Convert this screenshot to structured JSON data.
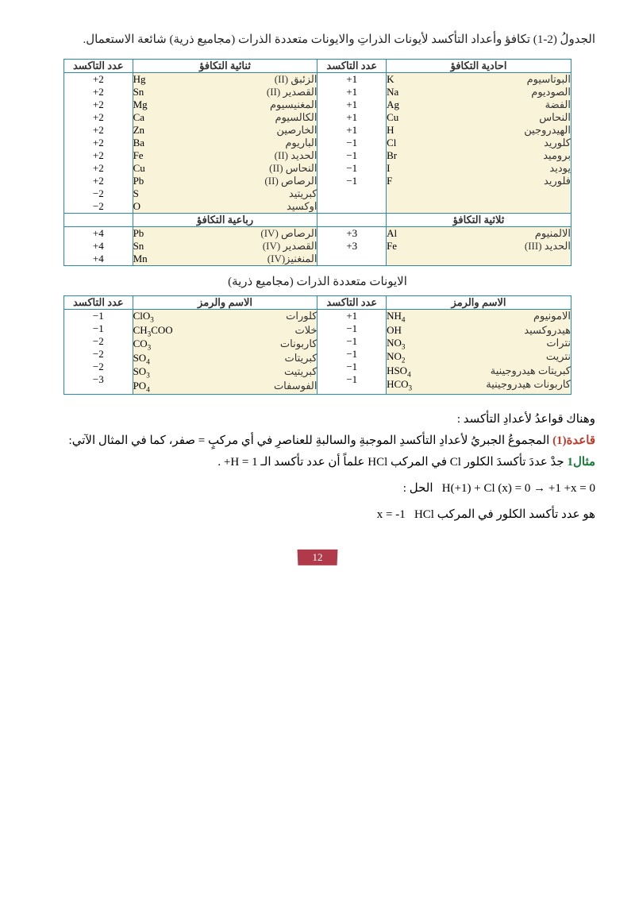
{
  "title": "الجدولُ (2-1) تكافؤ وأعداد التأكسد لأيونات الذراتِ والايونات متعددة الذرات (مجاميع ذرية) شائعة الاستعمال.",
  "table1": {
    "headers": {
      "monovalent": "احادية التكافؤ",
      "ox1": "عدد التاكسد",
      "divalent": "ثنائية التكافؤ",
      "ox2": "عدد التاكسد"
    },
    "left": [
      {
        "sym": "K",
        "ar": "البوتاسيوم",
        "ox": "+1"
      },
      {
        "sym": "Na",
        "ar": "الصوديوم",
        "ox": "+1"
      },
      {
        "sym": "Ag",
        "ar": "الفضة",
        "ox": "+1"
      },
      {
        "sym": "Cu",
        "ar": "النحاس",
        "ox": "+1"
      },
      {
        "sym": "H",
        "ar": "الهيدروجين",
        "ox": "+1"
      },
      {
        "sym": "Cl",
        "ar": "كلوريد",
        "ox": "−1"
      },
      {
        "sym": "Br",
        "ar": "بروميد",
        "ox": "−1"
      },
      {
        "sym": "I",
        "ar": "يوديد",
        "ox": "−1"
      },
      {
        "sym": "F",
        "ar": "فلوريد",
        "ox": "−1"
      }
    ],
    "right": [
      {
        "sym": "Hg",
        "ar": "الزئبق (II)",
        "ox": "+2"
      },
      {
        "sym": "Sn",
        "ar": "القصدير (II)",
        "ox": "+2"
      },
      {
        "sym": "Mg",
        "ar": "المغنيسيوم",
        "ox": "+2"
      },
      {
        "sym": "Ca",
        "ar": "الكالسيوم",
        "ox": "+2"
      },
      {
        "sym": "Zn",
        "ar": "الخارصين",
        "ox": "+2"
      },
      {
        "sym": "Ba",
        "ar": "الباريوم",
        "ox": "+2"
      },
      {
        "sym": "Fe",
        "ar": "الحديد (II)",
        "ox": "+2"
      },
      {
        "sym": "Cu",
        "ar": "النحاس (II)",
        "ox": "+2"
      },
      {
        "sym": "Pb",
        "ar": "الرصاص (II)",
        "ox": "+2"
      },
      {
        "sym": "S",
        "ar": "كبريتيد",
        "ox": "−2"
      },
      {
        "sym": "O",
        "ar": "اوكسيد",
        "ox": "−2"
      }
    ],
    "headers2": {
      "trivalent": "ثلاثية التكافؤ",
      "tetravalent": "رباعية التكافؤ"
    },
    "left2": [
      {
        "sym": "Al",
        "ar": "الالمنيوم",
        "ox": "+3"
      },
      {
        "sym": "Fe",
        "ar": "الحديد (III)",
        "ox": "+3"
      }
    ],
    "right2": [
      {
        "sym": "Pb",
        "ar": "الرصاص (IV)",
        "ox": "+4"
      },
      {
        "sym": "Sn",
        "ar": "القصدير (IV)",
        "ox": "+4"
      },
      {
        "sym": "Mn",
        "ar": "المنغنيز(IV)",
        "ox": "+4"
      }
    ]
  },
  "polyatomic_title": "الايونات متعددة الذرات (مجاميع ذرية)",
  "table2": {
    "headers": {
      "name_sym": "الاسم والرمز",
      "ox": "عدد التاكسد"
    },
    "left": [
      {
        "sym": "NH₄",
        "ar": "الامونيوم",
        "ox": "+1"
      },
      {
        "sym": "OH",
        "ar": "هيدروكسيد",
        "ox": "−1"
      },
      {
        "sym": "NO₃",
        "ar": "نترات",
        "ox": "−1"
      },
      {
        "sym": "NO₂",
        "ar": "نتريت",
        "ox": "−1"
      },
      {
        "sym": "HSO₄",
        "ar": "كبريتات هيدروجينية",
        "ox": "−1"
      },
      {
        "sym": "HCO₃",
        "ar": "كاربونات هيدروجينية",
        "ox": "−1"
      }
    ],
    "right": [
      {
        "sym": "ClO₃",
        "ar": "كلورات",
        "ox": "−1"
      },
      {
        "sym": "CH₃COO",
        "ar": "خلات",
        "ox": "−1"
      },
      {
        "sym": "CO₃",
        "ar": "كاربونات",
        "ox": "−2"
      },
      {
        "sym": "SO₄",
        "ar": "كبريتات",
        "ox": "−2"
      },
      {
        "sym": "SO₃",
        "ar": "كبريتيت",
        "ox": "−2"
      },
      {
        "sym": "PO₄",
        "ar": "الفوسفات",
        "ox": "−3"
      }
    ]
  },
  "body": {
    "intro": "وهناك قواعدُ لأعدادِ التأكسد :",
    "rule_label": "قاعدة(1)",
    "rule_text": "المجموعُ الجبريُ لأعدادِ التأكسدِ الموجبةِ والسالبةِ للعناصرِ في أي مركبٍ = صفر، كما في المثال الآتي:",
    "example_label": "مثال1",
    "example_text": "جدْ عددَ تأكسدَ الكلور Cl في المركب HCl علماً أن عدد تأكسد الـ H = 1+ .",
    "solution_label": "الحل :",
    "solution_eq": "H(+1) + Cl (x) = 0  →  +1 +x = 0",
    "solution_res_ltr": "x = -1",
    "solution_res_ar": "هو عدد تأكسد الكلور في المركب HCl"
  },
  "page_number": "12",
  "colors": {
    "border": "#2a8aa8",
    "cell_bg": "#f9f3d9",
    "rule": "#c0392b",
    "example": "#1a7a3a",
    "page_badge": "#b03a4a"
  }
}
